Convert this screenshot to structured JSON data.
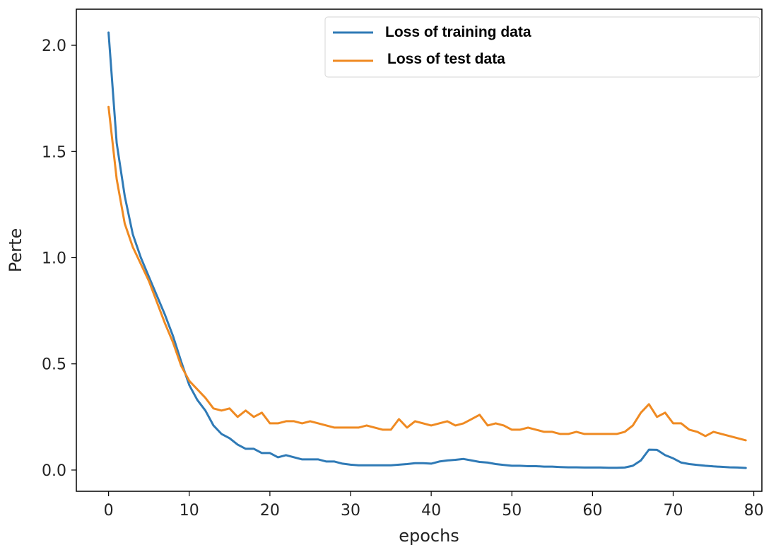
{
  "chart_data": {
    "type": "line",
    "title": "",
    "xlabel": "epochs",
    "ylabel": "Perte",
    "xlim": [
      -4,
      81
    ],
    "ylim": [
      -0.1,
      2.17
    ],
    "xticks": [
      0,
      10,
      20,
      30,
      40,
      50,
      60,
      70,
      80
    ],
    "yticks": [
      0.0,
      0.5,
      1.0,
      1.5,
      2.0
    ],
    "xtick_labels": [
      "0",
      "10",
      "20",
      "30",
      "40",
      "50",
      "60",
      "70",
      "80"
    ],
    "ytick_labels": [
      "0.0",
      "0.5",
      "1.0",
      "1.5",
      "2.0"
    ],
    "legend_position": "top-right",
    "grid": false,
    "series": [
      {
        "name": "Loss of training data",
        "color": "#2f7ab6",
        "x": [
          0,
          1,
          2,
          3,
          4,
          5,
          6,
          7,
          8,
          9,
          10,
          11,
          12,
          13,
          14,
          15,
          16,
          17,
          18,
          19,
          20,
          21,
          22,
          23,
          24,
          25,
          26,
          27,
          28,
          29,
          30,
          31,
          32,
          33,
          34,
          35,
          36,
          37,
          38,
          39,
          40,
          41,
          42,
          43,
          44,
          45,
          46,
          47,
          48,
          49,
          50,
          51,
          52,
          53,
          54,
          55,
          56,
          57,
          58,
          59,
          60,
          61,
          62,
          63,
          64,
          65,
          66,
          67,
          68,
          69,
          70,
          71,
          72,
          73,
          74,
          75,
          76,
          77,
          78,
          79
        ],
        "values": [
          2.06,
          1.54,
          1.29,
          1.11,
          1.0,
          0.91,
          0.82,
          0.73,
          0.63,
          0.51,
          0.4,
          0.33,
          0.28,
          0.21,
          0.17,
          0.15,
          0.12,
          0.1,
          0.1,
          0.08,
          0.08,
          0.06,
          0.07,
          0.06,
          0.05,
          0.05,
          0.05,
          0.04,
          0.04,
          0.03,
          0.025,
          0.022,
          0.022,
          0.022,
          0.022,
          0.022,
          0.025,
          0.028,
          0.032,
          0.032,
          0.03,
          0.04,
          0.045,
          0.048,
          0.052,
          0.045,
          0.038,
          0.035,
          0.028,
          0.024,
          0.02,
          0.02,
          0.018,
          0.018,
          0.016,
          0.016,
          0.014,
          0.013,
          0.013,
          0.012,
          0.012,
          0.012,
          0.011,
          0.011,
          0.012,
          0.02,
          0.045,
          0.096,
          0.095,
          0.07,
          0.055,
          0.035,
          0.028,
          0.024,
          0.02,
          0.017,
          0.015,
          0.013,
          0.012,
          0.01
        ]
      },
      {
        "name": "Loss of test data",
        "color": "#ef8a22",
        "x": [
          0,
          1,
          2,
          3,
          4,
          5,
          6,
          7,
          8,
          9,
          10,
          11,
          12,
          13,
          14,
          15,
          16,
          17,
          18,
          19,
          20,
          21,
          22,
          23,
          24,
          25,
          26,
          27,
          28,
          29,
          30,
          31,
          32,
          33,
          34,
          35,
          36,
          37,
          38,
          39,
          40,
          41,
          42,
          43,
          44,
          45,
          46,
          47,
          48,
          49,
          50,
          51,
          52,
          53,
          54,
          55,
          56,
          57,
          58,
          59,
          60,
          61,
          62,
          63,
          64,
          65,
          66,
          67,
          68,
          69,
          70,
          71,
          72,
          73,
          74,
          75,
          76,
          77,
          78,
          79
        ],
        "values": [
          1.71,
          1.37,
          1.16,
          1.05,
          0.97,
          0.89,
          0.79,
          0.69,
          0.6,
          0.49,
          0.42,
          0.38,
          0.34,
          0.29,
          0.28,
          0.29,
          0.25,
          0.28,
          0.25,
          0.27,
          0.22,
          0.22,
          0.23,
          0.23,
          0.22,
          0.23,
          0.22,
          0.21,
          0.2,
          0.2,
          0.2,
          0.2,
          0.21,
          0.2,
          0.19,
          0.19,
          0.24,
          0.2,
          0.23,
          0.22,
          0.21,
          0.22,
          0.23,
          0.21,
          0.22,
          0.24,
          0.26,
          0.21,
          0.22,
          0.21,
          0.19,
          0.19,
          0.2,
          0.19,
          0.18,
          0.18,
          0.17,
          0.17,
          0.18,
          0.17,
          0.17,
          0.17,
          0.17,
          0.17,
          0.18,
          0.21,
          0.27,
          0.31,
          0.25,
          0.27,
          0.22,
          0.22,
          0.19,
          0.18,
          0.16,
          0.18,
          0.17,
          0.16,
          0.15,
          0.14
        ]
      }
    ]
  }
}
